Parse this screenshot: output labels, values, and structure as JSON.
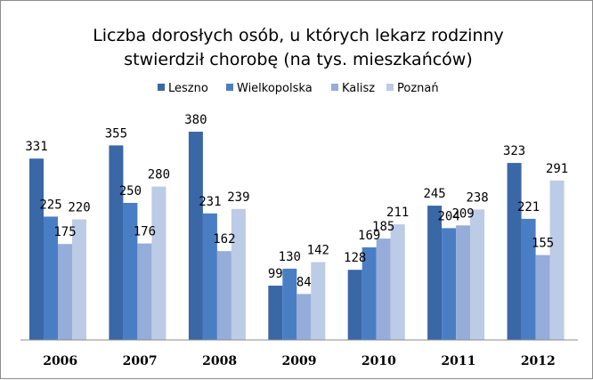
{
  "chart_data": {
    "type": "bar",
    "title": "Liczba dorosłych osób,  u których lekarz rodzinny stwierdził chorobę (na tys. mieszkańców)",
    "title_lines": [
      "Liczba dorosłych osób,  u których lekarz rodzinny",
      "stwierdził chorobę (na tys. mieszkańców)"
    ],
    "categories": [
      "2006",
      "2007",
      "2008",
      "2009",
      "2010",
      "2011",
      "2012"
    ],
    "series": [
      {
        "name": "Leszno",
        "color": "#3a67a6",
        "values": [
          331,
          355,
          380,
          99,
          128,
          245,
          323
        ]
      },
      {
        "name": "Wielkopolska",
        "color": "#4a7ec4",
        "values": [
          225,
          250,
          231,
          130,
          169,
          204,
          221
        ]
      },
      {
        "name": "Kalisz",
        "color": "#95add8",
        "values": [
          175,
          176,
          162,
          84,
          185,
          209,
          155
        ]
      },
      {
        "name": "Poznań",
        "color": "#bccbe6",
        "values": [
          220,
          280,
          239,
          142,
          211,
          238,
          291
        ]
      }
    ],
    "xlabel": "",
    "ylabel": "",
    "ylim": [
      0,
      400
    ],
    "grid": false,
    "legend_position": "top-center"
  }
}
